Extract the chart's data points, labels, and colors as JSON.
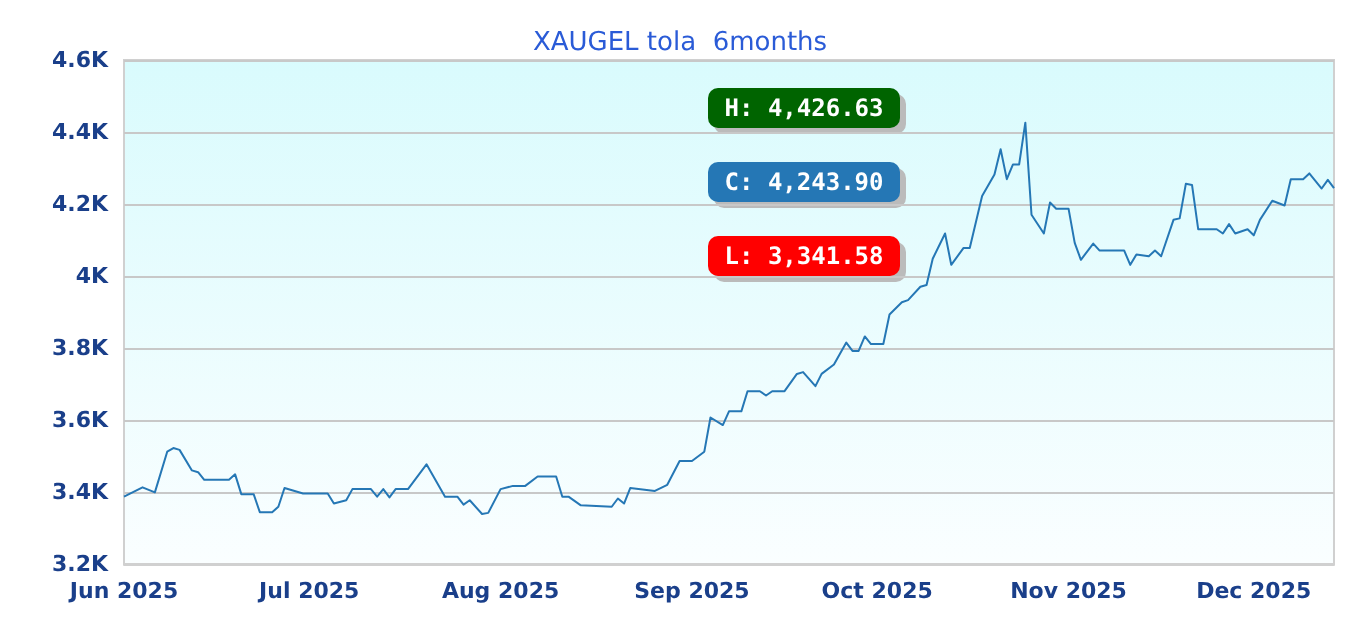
{
  "chart_data": {
    "type": "line",
    "title": "XAUGEL tola  6months",
    "x": [
      "2025-06-01",
      "2025-06-04",
      "2025-06-06",
      "2025-06-08",
      "2025-06-09",
      "2025-06-10",
      "2025-06-12",
      "2025-06-13",
      "2025-06-14",
      "2025-06-18",
      "2025-06-19",
      "2025-06-20",
      "2025-06-22",
      "2025-06-23",
      "2025-06-25",
      "2025-06-26",
      "2025-06-27",
      "2025-06-30",
      "2025-07-04",
      "2025-07-05",
      "2025-07-07",
      "2025-07-08",
      "2025-07-11",
      "2025-07-12",
      "2025-07-13",
      "2025-07-14",
      "2025-07-15",
      "2025-07-17",
      "2025-07-20",
      "2025-07-23",
      "2025-07-25",
      "2025-07-26",
      "2025-07-27",
      "2025-07-29",
      "2025-07-30",
      "2025-08-01",
      "2025-08-03",
      "2025-08-05",
      "2025-08-07",
      "2025-08-10",
      "2025-08-11",
      "2025-08-12",
      "2025-08-14",
      "2025-08-19",
      "2025-08-20",
      "2025-08-21",
      "2025-08-22",
      "2025-08-26",
      "2025-08-28",
      "2025-08-30",
      "2025-09-01",
      "2025-09-03",
      "2025-09-04",
      "2025-09-06",
      "2025-09-07",
      "2025-09-09",
      "2025-09-10",
      "2025-09-12",
      "2025-09-13",
      "2025-09-14",
      "2025-09-16",
      "2025-09-18",
      "2025-09-19",
      "2025-09-21",
      "2025-09-22",
      "2025-09-24",
      "2025-09-26",
      "2025-09-27",
      "2025-09-28",
      "2025-09-29",
      "2025-09-30",
      "2025-10-02",
      "2025-10-03",
      "2025-10-05",
      "2025-10-06",
      "2025-10-08",
      "2025-10-09",
      "2025-10-10",
      "2025-10-12",
      "2025-10-13",
      "2025-10-15",
      "2025-10-16",
      "2025-10-18",
      "2025-10-20",
      "2025-10-21",
      "2025-10-22",
      "2025-10-23",
      "2025-10-24",
      "2025-10-25",
      "2025-10-26",
      "2025-10-28",
      "2025-10-29",
      "2025-10-30",
      "2025-11-01",
      "2025-11-02",
      "2025-11-03",
      "2025-11-05",
      "2025-11-06",
      "2025-11-10",
      "2025-11-11",
      "2025-11-12",
      "2025-11-14",
      "2025-11-15",
      "2025-11-16",
      "2025-11-18",
      "2025-11-19",
      "2025-11-20",
      "2025-11-21",
      "2025-11-22",
      "2025-11-25",
      "2025-11-26",
      "2025-11-27",
      "2025-11-28",
      "2025-11-30",
      "2025-12-01",
      "2025-12-02",
      "2025-12-04",
      "2025-12-06",
      "2025-12-07",
      "2025-12-09",
      "2025-12-10",
      "2025-12-12",
      "2025-12-13",
      "2025-12-14"
    ],
    "series": [
      {
        "color": "#2577b5",
        "values": [
          3387,
          3413,
          3399,
          3512,
          3522,
          3517,
          3460,
          3455,
          3434,
          3434,
          3449,
          3394,
          3394,
          3344,
          3344,
          3359,
          3411,
          3396,
          3396,
          3368,
          3377,
          3408,
          3408,
          3387,
          3408,
          3385,
          3408,
          3408,
          3477,
          3387,
          3387,
          3365,
          3377,
          3339,
          3342,
          3408,
          3417,
          3417,
          3443,
          3443,
          3387,
          3387,
          3363,
          3359,
          3382,
          3368,
          3411,
          3403,
          3420,
          3486,
          3486,
          3512,
          3607,
          3586,
          3624,
          3624,
          3680,
          3680,
          3668,
          3680,
          3680,
          3728,
          3733,
          3694,
          3728,
          3754,
          3815,
          3792,
          3792,
          3832,
          3811,
          3811,
          3893,
          3927,
          3933,
          3970,
          3975,
          4048,
          4118,
          4031,
          4078,
          4078,
          4222,
          4282,
          4352,
          4269,
          4310,
          4310,
          4426,
          4170,
          4118,
          4204,
          4187,
          4187,
          4092,
          4045,
          4090,
          4071,
          4071,
          4031,
          4060,
          4055,
          4071,
          4055,
          4156,
          4160,
          4256,
          4253,
          4130,
          4130,
          4118,
          4144,
          4118,
          4130,
          4113,
          4156,
          4209,
          4196,
          4269,
          4269,
          4285,
          4243,
          4267,
          4244
        ]
      }
    ],
    "xlim": [
      "2025-06-01",
      "2025-12-14"
    ],
    "xticks": [
      {
        "value": "2025-06-01",
        "label": "Jun 2025"
      },
      {
        "value": "2025-07-01",
        "label": "Jul 2025"
      },
      {
        "value": "2025-08-01",
        "label": "Aug 2025"
      },
      {
        "value": "2025-09-01",
        "label": "Sep 2025"
      },
      {
        "value": "2025-10-01",
        "label": "Oct 2025"
      },
      {
        "value": "2025-11-01",
        "label": "Nov 2025"
      },
      {
        "value": "2025-12-01",
        "label": "Dec 2025"
      }
    ],
    "ylim": [
      3200,
      4600
    ],
    "yticks": [
      {
        "value": 3200,
        "label": "3.2K"
      },
      {
        "value": 3400,
        "label": "3.4K"
      },
      {
        "value": 3600,
        "label": "3.6K"
      },
      {
        "value": 3800,
        "label": "3.8K"
      },
      {
        "value": 4000,
        "label": "4K"
      },
      {
        "value": 4200,
        "label": "4.2K"
      },
      {
        "value": 4400,
        "label": "4.4K"
      },
      {
        "value": 4600,
        "label": "4.6K"
      }
    ],
    "grid": "y",
    "marker": "none",
    "line_style": "solid",
    "annotations": [
      "H: 4,426.63",
      "C: 4,243.90",
      "L: 3,341.58"
    ]
  }
}
